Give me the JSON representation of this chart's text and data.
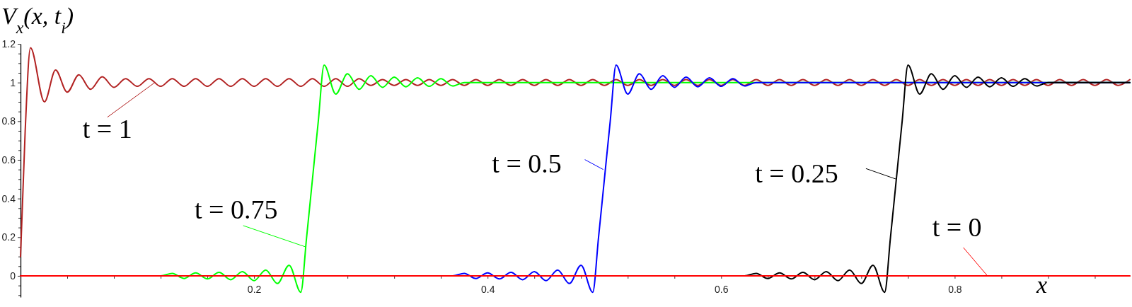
{
  "chart_data": {
    "type": "line",
    "ylabel": "V$_{x}$(x, t$_{i}$)",
    "xlabel": "x",
    "xlim": [
      0,
      0.95
    ],
    "ylim": [
      -0.11,
      1.2
    ],
    "xticks": [
      {
        "value": 0.04,
        "label": null
      },
      {
        "value": 0.08,
        "label": null
      },
      {
        "value": 0.12,
        "label": null
      },
      {
        "value": 0.16,
        "label": null
      },
      0.2,
      {
        "value": 0.24,
        "label": null
      },
      {
        "value": 0.28,
        "label": null
      },
      {
        "value": 0.32,
        "label": null
      },
      {
        "value": 0.36,
        "label": null
      },
      0.4,
      {
        "value": 0.44,
        "label": null
      },
      {
        "value": 0.48,
        "label": null
      },
      {
        "value": 0.52,
        "label": null
      },
      {
        "value": 0.56,
        "label": null
      },
      0.6,
      {
        "value": 0.64,
        "label": null
      },
      {
        "value": 0.68,
        "label": null
      },
      {
        "value": 0.72,
        "label": null
      },
      {
        "value": 0.76,
        "label": null
      },
      0.8,
      {
        "value": 0.84,
        "label": null
      },
      {
        "value": 0.88,
        "label": null
      },
      {
        "value": 0.92,
        "label": null
      }
    ],
    "yticks": [
      {
        "value": -0.1,
        "label": null
      },
      {
        "value": -0.05,
        "label": null
      },
      0,
      {
        "value": 0.05,
        "label": null
      },
      {
        "value": 0.1,
        "label": null
      },
      {
        "value": 0.15,
        "label": null
      },
      0.2,
      {
        "value": 0.25,
        "label": null
      },
      {
        "value": 0.3,
        "label": null
      },
      {
        "value": 0.35,
        "label": null
      },
      0.4,
      {
        "value": 0.45,
        "label": null
      },
      {
        "value": 0.5,
        "label": null
      },
      {
        "value": 0.55,
        "label": null
      },
      0.6,
      {
        "value": 0.65,
        "label": null
      },
      {
        "value": 0.7,
        "label": null
      },
      {
        "value": 0.75,
        "label": null
      },
      0.8,
      {
        "value": 0.85,
        "label": null
      },
      {
        "value": 0.9,
        "label": null
      },
      {
        "value": 0.95,
        "label": null
      },
      1,
      {
        "value": 1.05,
        "label": null
      },
      {
        "value": 1.1,
        "label": null
      },
      {
        "value": 1.15,
        "label": null
      },
      1.2
    ],
    "series": [
      {
        "color": "#b22222",
        "x": [
          0,
          0.004,
          0.0085,
          0.0205,
          0.03,
          0.04,
          0.05,
          0.06,
          0.07,
          0.08,
          0.09,
          0.1,
          0.11,
          0.12,
          0.13,
          0.14,
          0.15,
          0.16,
          0.17,
          0.18,
          0.19,
          0.2,
          0.21,
          0.22,
          0.23,
          0.24,
          0.25,
          0.26,
          0.27,
          0.28,
          0.29,
          0.3,
          0.31,
          0.32,
          0.33,
          0.34,
          0.35,
          0.36,
          0.37,
          0.38,
          0.39,
          0.4,
          0.41,
          0.42,
          0.43,
          0.44,
          0.45,
          0.46,
          0.47,
          0.48,
          0.49,
          0.5,
          0.51,
          0.52,
          0.53,
          0.54,
          0.55,
          0.56,
          0.57,
          0.58,
          0.59,
          0.6,
          0.61,
          0.62,
          0.63,
          0.64,
          0.65,
          0.66,
          0.67,
          0.68,
          0.69,
          0.7,
          0.71,
          0.72,
          0.73,
          0.74,
          0.75,
          0.76,
          0.77,
          0.78,
          0.79,
          0.8,
          0.81,
          0.82,
          0.83,
          0.84,
          0.85,
          0.86,
          0.87,
          0.88,
          0.89,
          0.9,
          0.91,
          0.92,
          0.93,
          0.94,
          0.95
        ],
        "values": [
          0.1,
          0.75,
          1.18,
          0.9,
          1.065,
          0.95,
          1.04,
          0.965,
          1.03,
          0.975,
          1.02,
          0.98,
          1.02,
          0.98,
          1.02,
          0.98,
          1.02,
          0.98,
          1.02,
          0.98,
          1.02,
          0.98,
          1.02,
          0.98,
          1.02,
          0.98,
          1.02,
          0.98,
          1.02,
          0.98,
          1.02,
          0.985,
          1.015,
          0.985,
          1.015,
          0.985,
          1.015,
          0.985,
          1.015,
          0.985,
          1.015,
          0.985,
          1.015,
          0.985,
          1.015,
          0.985,
          1.015,
          0.985,
          1.015,
          0.985,
          1.015,
          0.985,
          1.015,
          0.985,
          1.015,
          0.985,
          1.015,
          0.985,
          1.015,
          0.985,
          1.015,
          0.985,
          1.015,
          0.985,
          1.015,
          0.985,
          1.015,
          0.985,
          1.015,
          0.985,
          1.015,
          0.985,
          1.015,
          0.985,
          1.015,
          0.985,
          1.015,
          0.985,
          1.015,
          0.985,
          1.015,
          0.985,
          1.015,
          0.985,
          1.015,
          0.985,
          1.015,
          0.985,
          1.015,
          0.985,
          1.015,
          0.985,
          1.015,
          0.985,
          1.015,
          0.985,
          1.015
        ]
      },
      {
        "color": "#00ff00",
        "x": [
          0,
          0.12,
          0.13,
          0.14,
          0.15,
          0.16,
          0.17,
          0.18,
          0.19,
          0.2,
          0.21,
          0.22,
          0.23,
          0.24,
          0.245,
          0.25,
          0.255,
          0.26,
          0.27,
          0.28,
          0.29,
          0.3,
          0.31,
          0.32,
          0.33,
          0.34,
          0.35,
          0.36,
          0.37,
          0.38,
          0.95
        ],
        "values": [
          0,
          0,
          0.013,
          -0.014,
          0.015,
          -0.016,
          0.018,
          -0.02,
          0.022,
          -0.025,
          0.03,
          -0.04,
          0.055,
          -0.085,
          0.2,
          0.5,
          0.8,
          1.09,
          0.94,
          1.045,
          0.965,
          1.035,
          0.975,
          1.028,
          0.978,
          1.024,
          0.98,
          1.02,
          0.982,
          1,
          1
        ]
      },
      {
        "color": "#0000ff",
        "x": [
          0,
          0.37,
          0.38,
          0.39,
          0.4,
          0.41,
          0.42,
          0.43,
          0.44,
          0.45,
          0.46,
          0.47,
          0.48,
          0.49,
          0.495,
          0.5,
          0.505,
          0.51,
          0.52,
          0.53,
          0.54,
          0.55,
          0.56,
          0.57,
          0.58,
          0.59,
          0.6,
          0.61,
          0.62,
          0.63,
          0.95
        ],
        "values": [
          0,
          0,
          0.013,
          -0.014,
          0.015,
          -0.016,
          0.018,
          -0.02,
          0.022,
          -0.025,
          0.03,
          -0.04,
          0.055,
          -0.085,
          0.2,
          0.5,
          0.8,
          1.09,
          0.94,
          1.045,
          0.965,
          1.035,
          0.975,
          1.028,
          0.978,
          1.024,
          0.98,
          1.02,
          0.982,
          1,
          1
        ]
      },
      {
        "color": "#000000",
        "x": [
          0,
          0.62,
          0.63,
          0.64,
          0.65,
          0.66,
          0.67,
          0.68,
          0.69,
          0.7,
          0.71,
          0.72,
          0.73,
          0.74,
          0.745,
          0.75,
          0.755,
          0.76,
          0.77,
          0.78,
          0.79,
          0.8,
          0.81,
          0.82,
          0.83,
          0.84,
          0.85,
          0.86,
          0.87,
          0.88,
          0.95
        ],
        "values": [
          0,
          0,
          0.013,
          -0.014,
          0.015,
          -0.016,
          0.018,
          -0.02,
          0.022,
          -0.025,
          0.03,
          -0.04,
          0.055,
          -0.085,
          0.2,
          0.5,
          0.8,
          1.09,
          0.94,
          1.045,
          0.965,
          1.035,
          0.975,
          1.028,
          0.978,
          1.024,
          0.98,
          1.02,
          0.982,
          1,
          1
        ]
      },
      {
        "color": "#ff0000",
        "x": [
          0,
          0.95
        ],
        "values": [
          0,
          0
        ]
      }
    ],
    "annotations": [
      {
        "text": "t = 1",
        "x": 0.115,
        "y": 1
      },
      {
        "text": "t = 0.75",
        "x": 0.244,
        "y": 0.15
      },
      {
        "text": "t = 0.5",
        "x": 0.499,
        "y": 0.55
      },
      {
        "text": "t = 0.25",
        "x": 0.75,
        "y": 0.5
      },
      {
        "text": "t = 0",
        "x": 0.828,
        "y": 0
      }
    ]
  }
}
